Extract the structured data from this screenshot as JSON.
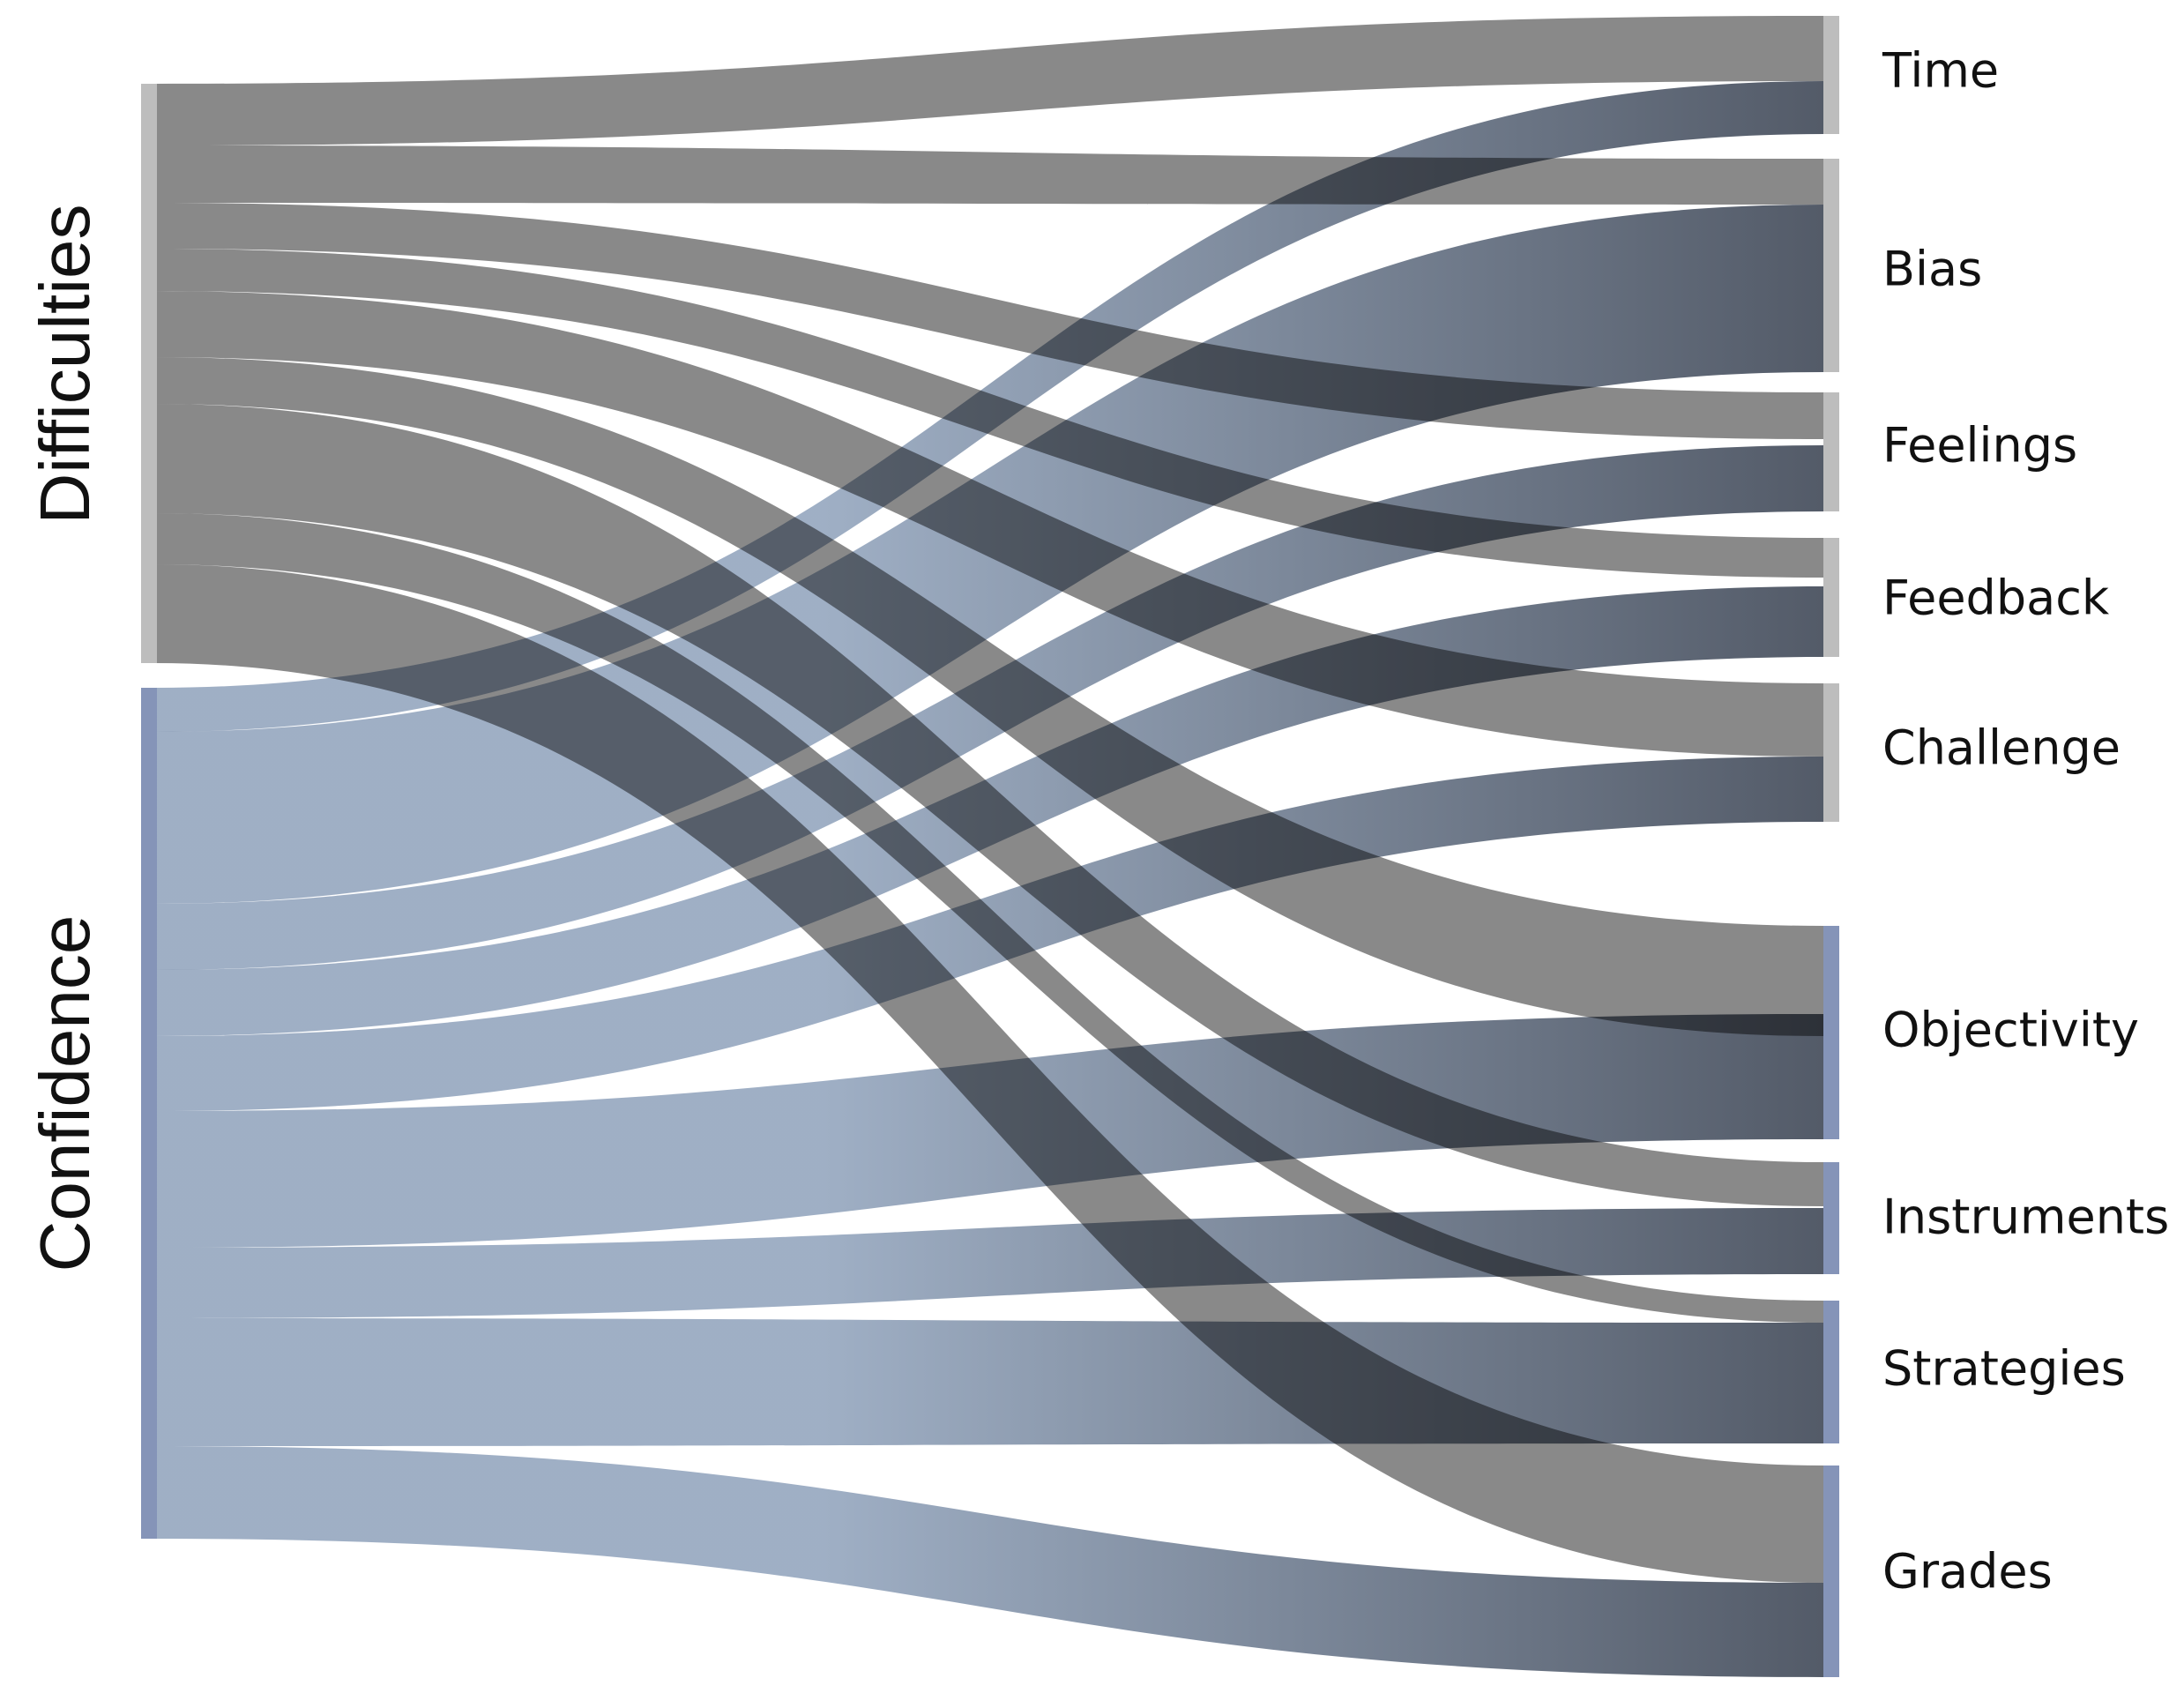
{
  "colors": {
    "difficulties_node": "#bdbdbd",
    "difficulties_flow": "#7f7f7f",
    "confidence_node": "#8594b8",
    "confidence_flow": "#9aabc2",
    "flow_end_dark": "#4a5260"
  },
  "diagram": {
    "sources": [
      {
        "id": "difficulties",
        "label": "Difficulties"
      },
      {
        "id": "confidence",
        "label": "Confidence"
      }
    ],
    "targets": [
      {
        "id": "time",
        "label": "Time"
      },
      {
        "id": "bias",
        "label": "Bias"
      },
      {
        "id": "feelings",
        "label": "Feelings"
      },
      {
        "id": "feedback",
        "label": "Feedback"
      },
      {
        "id": "challenge",
        "label": "Challenge"
      },
      {
        "id": "objectivity",
        "label": "Objectivity"
      },
      {
        "id": "instruments",
        "label": "Instruments"
      },
      {
        "id": "strategies",
        "label": "Strategies"
      },
      {
        "id": "grades",
        "label": "Grades"
      }
    ]
  }
}
